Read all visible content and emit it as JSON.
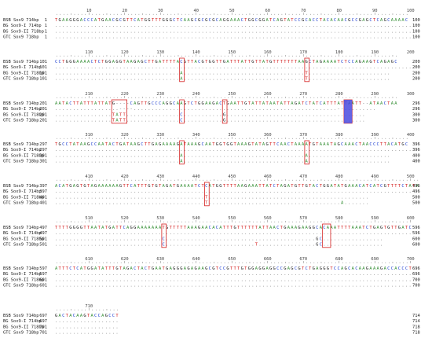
{
  "colors": {
    "A": "#2e8b2e",
    "C": "#1f3fd1",
    "G": "#111111",
    "T": "#d42020",
    "dots": "#666666",
    "box": "#d42020",
    "highlight": "#4a4adf"
  },
  "blocks": [
    {
      "ruler": [
        10,
        20,
        30,
        40,
        50,
        60,
        70,
        80,
        90,
        100
      ],
      "rows": [
        {
          "name": "BSB Sox9 714bp",
          "start": "1",
          "seq": "TGAAGGGACCCATGAACGCGTTCATGGTTTGGGCTCAAGCGCGCGCAGGAAACTGGCGGATCAGTATCCGCACCTACACAACGCCGAGCTCAGCAAAAC",
          "end": "100"
        },
        {
          "name": "BG Sox9-I 714bp",
          "start": "1",
          "seq": "....................................................................................................",
          "end": "100"
        },
        {
          "name": "BG Sox9-II 718bp",
          "start": "1",
          "seq": "....................................................................................................",
          "end": "100"
        },
        {
          "name": "GTC Sox9 718bp",
          "start": "1",
          "seq": "....................................................................................................",
          "end": "100"
        }
      ]
    },
    {
      "ruler": [
        110,
        120,
        130,
        140,
        150,
        160,
        170,
        180,
        190,
        200
      ],
      "rows": [
        {
          "name": "BSB Sox9 714bp",
          "start": "101",
          "seq": "CCTGGGAAAACTCTGGAGGTAAGAGCTTGATTTTACGTTACGTGGTTGATTTATTGTTATGTTTTTTTAAGCTAGAAAATCTCCAGAAGTCAGAGC",
          "end": "200"
        },
        {
          "name": "BG Sox9-I 714bp",
          "start": "101",
          "seq": "....................................................................................................",
          "end": "200"
        },
        {
          "name": "BG Sox9-II 718bp",
          "start": "101",
          "seq": "...................................A..................................T.......................",
          "end": "200"
        },
        {
          "name": "GTC Sox9 718bp",
          "start": "101",
          "seq": "...................................A..................................T.......................",
          "end": "200"
        }
      ]
    },
    {
      "ruler": [
        210,
        220,
        230,
        240,
        250,
        260,
        270,
        280,
        290,
        300
      ],
      "rows": [
        {
          "name": "BSB Sox9 714bp",
          "start": "201",
          "seq": "AATACTTATTTATTATG----CAGTTGCCCAGGCAAGTCTGGAAGACTGAATTGTATTATAATATTAGATCTATCATTTATTAATT--ATAACTAA",
          "end": "296"
        },
        {
          "name": "BG Sox9-I 714bp",
          "start": "201",
          "seq": "..................----.........................................................--.........",
          "end": "296"
        },
        {
          "name": "BG Sox9-II 718bp",
          "start": "201",
          "seq": "................TATT...............C...........G.......................................",
          "end": "300"
        },
        {
          "name": "GTC Sox9 718bp",
          "start": "201",
          "seq": "................TATT...............C...........G.......................................",
          "end": "300"
        }
      ]
    },
    {
      "ruler": [
        310,
        320,
        330,
        340,
        350,
        360,
        370,
        380,
        390,
        400
      ],
      "rows": [
        {
          "name": "BSB Sox9 714bp",
          "start": "297",
          "seq": "TGCCTATAAGCCAATACTGATAAGCTTGAGAAAAGATAAAGCAATGGTGGTAAAGTATAGTTCAACTAAAATGTAAATAGCAAACTAACCCTTACATGC",
          "end": "396"
        },
        {
          "name": "BG Sox9-I 714bp",
          "start": "297",
          "seq": "....................................................................................................",
          "end": "396"
        },
        {
          "name": "BG Sox9-II 718bp",
          "start": "301",
          "seq": "...................................A..................................A.......................",
          "end": "400"
        },
        {
          "name": "GTC Sox9 718bp",
          "start": "301",
          "seq": "...................................A..................................A.......................",
          "end": "400"
        }
      ]
    },
    {
      "ruler": [
        410,
        420,
        430,
        440,
        450,
        460,
        470,
        480,
        490,
        500
      ],
      "rows": [
        {
          "name": "BSB Sox9 714bp",
          "start": "397",
          "seq": "ACATGAGTGTAGAAAAAAGTTCATTTGTGTAGATGAAAATCTCATGGTTTTAAGAAATTATCTAGATGTTGTACTGGATATGAAACATCATCGTTTTCTATA",
          "end": "496"
        },
        {
          "name": "BG Sox9-I 714bp",
          "start": "397",
          "seq": "....................................................................................................",
          "end": "496"
        },
        {
          "name": "BG Sox9-II 718bp",
          "start": "401",
          "seq": "..........................................T.............................................",
          "end": "500"
        },
        {
          "name": "GTC Sox9 718bp",
          "start": "401",
          "seq": "..........................................T.....................................A.......",
          "end": "500"
        }
      ]
    },
    {
      "ruler": [
        510,
        520,
        530,
        540,
        550,
        560,
        570,
        580,
        590,
        600
      ],
      "rows": [
        {
          "name": "BSB Sox9 714bp",
          "start": "497",
          "seq": "TTTTGGGGTTAATATGATTCAGGAAAAAAATGTTTTTAAAGAACACATTTGTTTTTTATTAACTGAAAGAAGGCACAAATTTTAAATCTGAGTGTTGATC",
          "end": "596"
        },
        {
          "name": "BG Sox9-I 714bp",
          "start": "497",
          "seq": "....................................................................................................",
          "end": "596"
        },
        {
          "name": "BG Sox9-II 718bp",
          "start": "501",
          "seq": "..............................C..........................................GC.................",
          "end": "600"
        },
        {
          "name": "GTC Sox9 718bp",
          "start": "501",
          "seq": "..............................C.........................T................GC.................",
          "end": "600"
        }
      ]
    },
    {
      "ruler": [
        610,
        620,
        630,
        640,
        650,
        660,
        670,
        680,
        690,
        700
      ],
      "rows": [
        {
          "name": "BSB Sox9 714bp",
          "start": "597",
          "seq": "ATTTCTCATGGATATTTGTAGACTACTGAATGAGGGAGAGAAGCGTCCGTTTGTGGAGGAGGCCGAGCGTCTGAGGGTCCAGCACAAGAAAGACCACCCT",
          "end": "696"
        },
        {
          "name": "BG Sox9-I 714bp",
          "start": "597",
          "seq": "....................................................................................................",
          "end": "696"
        },
        {
          "name": "BG Sox9-II 718bp",
          "start": "601",
          "seq": "....................................................................................................",
          "end": "700"
        },
        {
          "name": "GTC Sox9 718bp",
          "start": "601",
          "seq": "....................................................................................................",
          "end": "700"
        }
      ]
    },
    {
      "ruler": [
        710
      ],
      "rows": [
        {
          "name": "BSB Sox9 714bp",
          "start": "697",
          "seq": "GACTACAAGTACCAGCCT",
          "end": "714"
        },
        {
          "name": "BG Sox9-I 714bp",
          "start": "697",
          "seq": "..................",
          "end": "714"
        },
        {
          "name": "BG Sox9-II 718bp",
          "start": "701",
          "seq": "..................",
          "end": "718"
        },
        {
          "name": "GTC Sox9 718bp",
          "start": "701",
          "seq": "..................",
          "end": "718"
        }
      ]
    }
  ]
}
